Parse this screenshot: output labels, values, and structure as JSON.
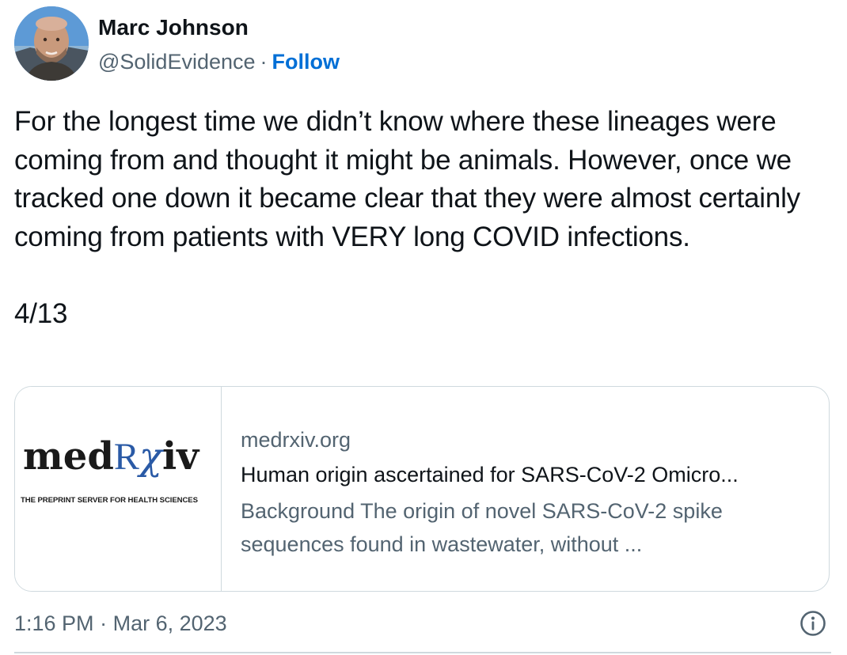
{
  "author": {
    "display_name": "Marc Johnson",
    "handle": "@SolidEvidence",
    "separator": "·",
    "follow_label": "Follow",
    "avatar_icon": "avatar-photo"
  },
  "tweet": {
    "text": "For the longest time we didn’t know where these lineages were coming from and thought it might be animals. However, once we tracked one down it became clear that they were almost certainly coming from patients with VERY long COVID infections.",
    "counter": "4/13"
  },
  "card": {
    "logo": {
      "word_med": "med",
      "word_r": "R",
      "word_chi": "χ",
      "word_iv": "iv",
      "tagline": "THE PREPRINT SERVER FOR HEALTH SCIENCES"
    },
    "domain": "medrxiv.org",
    "title": "Human origin ascertained for SARS-CoV-2 Omicro...",
    "description": "Background The origin of novel SARS-CoV-2 spike sequences found in wastewater, without ..."
  },
  "footer": {
    "time": "1:16 PM",
    "separator": "·",
    "date": "Mar 6, 2023",
    "info_icon": "info-icon"
  },
  "colors": {
    "text_primary": "#0f1419",
    "text_secondary": "#536471",
    "link_blue": "#006fd6",
    "border": "#cfd9de",
    "medrxiv_blue": "#2a5aa6"
  }
}
